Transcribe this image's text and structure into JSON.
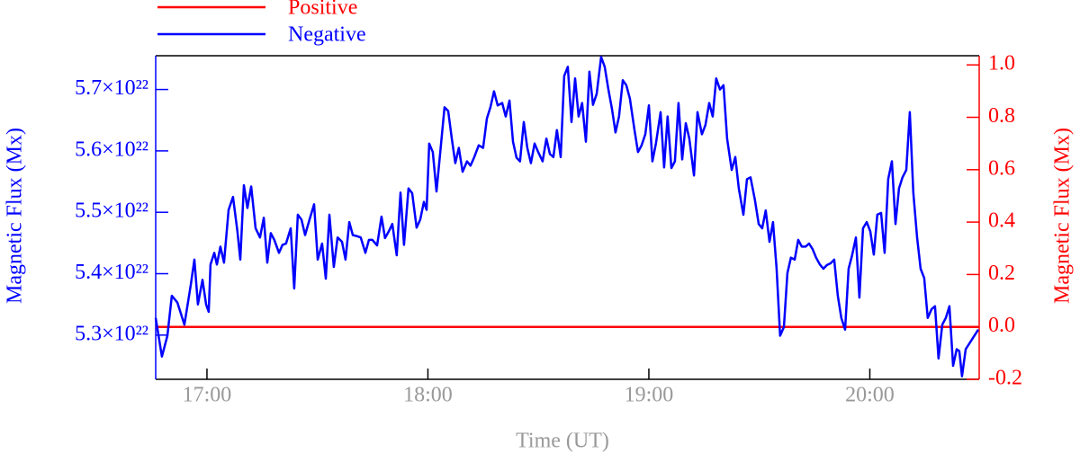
{
  "chart_data": {
    "type": "line",
    "xlabel": "Time (UT)",
    "ylabel": "Magnetic Flux (Mx)",
    "y2label": "Magnetic Flux (Mx)",
    "xlim": [
      16.768,
      20.495
    ],
    "xticks": [
      {
        "value": 17,
        "label": "17:00"
      },
      {
        "value": 18,
        "label": "18:00"
      },
      {
        "value": 19,
        "label": "19:00"
      },
      {
        "value": 20,
        "label": "20:00"
      }
    ],
    "ylim": [
      5.228e+22,
      5.755e+22
    ],
    "yticks": [
      {
        "value": 5.3e+22,
        "label": "5.3×10²²"
      },
      {
        "value": 5.4e+22,
        "label": "5.4×10²²"
      },
      {
        "value": 5.5e+22,
        "label": "5.5×10²²"
      },
      {
        "value": 5.6e+22,
        "label": "5.6×10²²"
      },
      {
        "value": 5.7e+22,
        "label": "5.7×10²²"
      }
    ],
    "y2lim": [
      -0.2,
      1.035
    ],
    "y2ticks": [
      -0.2,
      {
        "value": 0,
        "label": "0.0"
      },
      0.2,
      0.4,
      0.6,
      0.8,
      {
        "value": 1,
        "label": "1.0"
      }
    ],
    "series": [
      {
        "name": "Positive",
        "color": "#ff0000",
        "axis": "y2",
        "x": [
          16.768,
          20.495
        ],
        "values": [
          0,
          0
        ]
      },
      {
        "name": "Negative",
        "color": "#0000ff",
        "axis": "y",
        "x": [
          16.768,
          16.796,
          16.821,
          16.841,
          16.866,
          16.898,
          16.927,
          16.943,
          16.959,
          16.98,
          16.996,
          17.008,
          17.016,
          17.033,
          17.045,
          17.061,
          17.077,
          17.098,
          17.118,
          17.138,
          17.151,
          17.167,
          17.183,
          17.2,
          17.22,
          17.24,
          17.257,
          17.273,
          17.289,
          17.305,
          17.326,
          17.342,
          17.358,
          17.379,
          17.395,
          17.411,
          17.428,
          17.444,
          17.464,
          17.485,
          17.501,
          17.521,
          17.538,
          17.554,
          17.574,
          17.591,
          17.611,
          17.627,
          17.644,
          17.66,
          17.68,
          17.696,
          17.717,
          17.733,
          17.749,
          17.77,
          17.79,
          17.806,
          17.823,
          17.839,
          17.859,
          17.876,
          17.892,
          17.912,
          17.929,
          17.949,
          17.965,
          17.982,
          17.994,
          18.006,
          18.022,
          18.039,
          18.059,
          18.075,
          18.092,
          18.108,
          18.124,
          18.14,
          18.157,
          18.177,
          18.193,
          18.21,
          18.23,
          18.25,
          18.267,
          18.283,
          18.299,
          18.316,
          18.336,
          18.352,
          18.369,
          18.385,
          18.401,
          18.417,
          18.434,
          18.45,
          18.466,
          18.483,
          18.499,
          18.519,
          18.536,
          18.552,
          18.568,
          18.584,
          18.601,
          18.617,
          18.633,
          18.65,
          18.666,
          18.682,
          18.698,
          18.715,
          18.731,
          18.747,
          18.764,
          18.784,
          18.8,
          18.817,
          18.833,
          18.849,
          18.865,
          18.882,
          18.898,
          18.914,
          18.935,
          18.951,
          18.967,
          18.984,
          19.0,
          19.016,
          19.032,
          19.053,
          19.069,
          19.085,
          19.102,
          19.118,
          19.134,
          19.151,
          19.167,
          19.183,
          19.204,
          19.22,
          19.24,
          19.256,
          19.273,
          19.289,
          19.305,
          19.322,
          19.338,
          19.354,
          19.375,
          19.391,
          19.407,
          19.428,
          19.444,
          19.46,
          19.48,
          19.497,
          19.513,
          19.529,
          19.546,
          19.562,
          19.578,
          19.594,
          19.611,
          19.627,
          19.643,
          19.66,
          19.676,
          19.692,
          19.709,
          19.725,
          19.741,
          19.757,
          19.774,
          19.79,
          19.806,
          19.823,
          19.839,
          19.855,
          19.871,
          19.888,
          19.904,
          19.92,
          19.937,
          19.953,
          19.969,
          19.986,
          20.002,
          20.018,
          20.034,
          20.051,
          20.067,
          20.083,
          20.1,
          20.116,
          20.132,
          20.148,
          20.165,
          20.181,
          20.197,
          20.214,
          20.23,
          20.246,
          20.262,
          20.279,
          20.295,
          20.311,
          20.328,
          20.344,
          20.36,
          20.377,
          20.393,
          20.405,
          20.417,
          20.434,
          20.491
        ],
        "values": [
          5.328e+22,
          5.265e+22,
          5.299e+22,
          5.364e+22,
          5.353e+22,
          5.317e+22,
          5.382e+22,
          5.423e+22,
          5.35e+22,
          5.39e+22,
          5.35e+22,
          5.338e+22,
          5.415e+22,
          5.434e+22,
          5.415e+22,
          5.444e+22,
          5.418e+22,
          5.504e+22,
          5.525e+22,
          5.469e+22,
          5.423e+22,
          5.544e+22,
          5.507e+22,
          5.542e+22,
          5.474e+22,
          5.459e+22,
          5.491e+22,
          5.418e+22,
          5.466e+22,
          5.455e+22,
          5.434e+22,
          5.447e+22,
          5.449e+22,
          5.474e+22,
          5.376e+22,
          5.496e+22,
          5.488e+22,
          5.463e+22,
          5.488e+22,
          5.513e+22,
          5.423e+22,
          5.449e+22,
          5.392e+22,
          5.496e+22,
          5.411e+22,
          5.459e+22,
          5.452e+22,
          5.423e+22,
          5.484e+22,
          5.463e+22,
          5.461e+22,
          5.459e+22,
          5.434e+22,
          5.455e+22,
          5.455e+22,
          5.446e+22,
          5.493e+22,
          5.458e+22,
          5.469e+22,
          5.481e+22,
          5.43e+22,
          5.532e+22,
          5.447e+22,
          5.539e+22,
          5.531e+22,
          5.475e+22,
          5.488e+22,
          5.517e+22,
          5.504e+22,
          5.612e+22,
          5.598e+22,
          5.534e+22,
          5.609e+22,
          5.671e+22,
          5.665e+22,
          5.62e+22,
          5.58e+22,
          5.605e+22,
          5.566e+22,
          5.583e+22,
          5.576e+22,
          5.59e+22,
          5.609e+22,
          5.605e+22,
          5.653e+22,
          5.671e+22,
          5.697e+22,
          5.674e+22,
          5.678e+22,
          5.656e+22,
          5.682e+22,
          5.615e+22,
          5.589e+22,
          5.583e+22,
          5.647e+22,
          5.605e+22,
          5.58e+22,
          5.612e+22,
          5.598e+22,
          5.583e+22,
          5.62e+22,
          5.595e+22,
          5.59e+22,
          5.634e+22,
          5.59e+22,
          5.722e+22,
          5.737e+22,
          5.647e+22,
          5.718e+22,
          5.656e+22,
          5.678e+22,
          5.615e+22,
          5.729e+22,
          5.675e+22,
          5.693e+22,
          5.753e+22,
          5.737e+22,
          5.7e+22,
          5.668e+22,
          5.63e+22,
          5.656e+22,
          5.715e+22,
          5.707e+22,
          5.685e+22,
          5.634e+22,
          5.598e+22,
          5.609e+22,
          5.627e+22,
          5.674e+22,
          5.583e+22,
          5.612e+22,
          5.663e+22,
          5.573e+22,
          5.656e+22,
          5.572e+22,
          5.583e+22,
          5.678e+22,
          5.586e+22,
          5.645e+22,
          5.62e+22,
          5.56e+22,
          5.663e+22,
          5.627e+22,
          5.642e+22,
          5.678e+22,
          5.656e+22,
          5.718e+22,
          5.7e+22,
          5.707e+22,
          5.62e+22,
          5.569e+22,
          5.59e+22,
          5.539e+22,
          5.496e+22,
          5.554e+22,
          5.557e+22,
          5.52e+22,
          5.481e+22,
          5.474e+22,
          5.503e+22,
          5.452e+22,
          5.484e+22,
          5.408e+22,
          5.299e+22,
          5.313e+22,
          5.401e+22,
          5.426e+22,
          5.423e+22,
          5.455e+22,
          5.444e+22,
          5.444e+22,
          5.449e+22,
          5.44e+22,
          5.426e+22,
          5.415e+22,
          5.408e+22,
          5.414e+22,
          5.417e+22,
          5.423e+22,
          5.364e+22,
          5.328e+22,
          5.309e+22,
          5.408e+22,
          5.43e+22,
          5.459e+22,
          5.361e+22,
          5.474e+22,
          5.484e+22,
          5.469e+22,
          5.431e+22,
          5.496e+22,
          5.499e+22,
          5.434e+22,
          5.554e+22,
          5.583e+22,
          5.481e+22,
          5.539e+22,
          5.557e+22,
          5.569e+22,
          5.663e+22,
          5.532e+22,
          5.459e+22,
          5.408e+22,
          5.393e+22,
          5.328e+22,
          5.342e+22,
          5.347e+22,
          5.262e+22,
          5.317e+22,
          5.328e+22,
          5.347e+22,
          5.25e+22,
          5.277e+22,
          5.274e+22,
          5.233e+22,
          5.277e+22,
          5.309e+22
        ]
      }
    ]
  }
}
